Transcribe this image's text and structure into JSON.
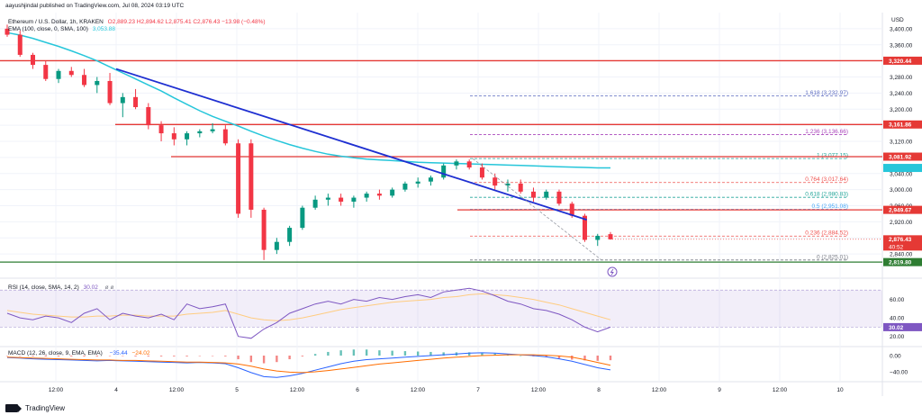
{
  "header": {
    "published_line": "aayushjindal published on TradingView.com, Jul 08, 2024 03:19 UTC"
  },
  "legend": {
    "symbol": "Ethereum / U.S. Dollar, 1h, KRAKEN",
    "ohlc": "O2,889.23 H2,894.62 L2,875.41 C2,876.43 −13.98 (−0.48%)",
    "ema_label": "EMA (100, close, 0, SMA, 100)",
    "ema_value": "3,053.88",
    "rsi_label": "RSI (14, close, SMA, 14, 2)",
    "rsi_value": "30.02",
    "rsi_extra": "",
    "macd_label": "MACD (12, 26, close, 9, EMA, EMA)",
    "macd_values": "",
    "macd_v2": "−35.44",
    "macd_v3": "−24.02"
  },
  "footer": {
    "brand": "TradingView"
  },
  "colors": {
    "up": "#089981",
    "down": "#f23645",
    "ema": "#26c6da",
    "trend": "#1e2fd1",
    "rsi": "#7e57c2",
    "macd": "#2962ff",
    "signal": "#ff6d00",
    "red_line": "#e53935",
    "green_line": "#2e7d32"
  },
  "chart_data": [
    {
      "type": "candlestick",
      "title": "Ethereum / U.S. Dollar, 1h, KRAKEN",
      "currency_label": "USD",
      "ylim": [
        2800,
        3440
      ],
      "y_ticks": [
        3400,
        3360,
        3320,
        3280,
        3240,
        3200,
        3160,
        3120,
        3080,
        3040,
        3000,
        2960,
        2920,
        2880,
        2840
      ],
      "y_tick_labels": [
        "3,400.00",
        "3,360.00",
        "3,320.00",
        "3,280.00",
        "3,240.00",
        "3,200.00",
        "3,160.00",
        "3,120.00",
        "3,080.00",
        "3,040.00",
        "3,000.00",
        "2,960.00",
        "2,920.00",
        "2,880.00",
        "2,840.00"
      ],
      "x_ticks": [
        {
          "label": "12:00",
          "pos": 0.5
        },
        {
          "label": "4",
          "pos": 1
        },
        {
          "label": "12:00",
          "pos": 1.5
        },
        {
          "label": "5",
          "pos": 2
        },
        {
          "label": "12:00",
          "pos": 2.5
        },
        {
          "label": "6",
          "pos": 3
        },
        {
          "label": "12:00",
          "pos": 3.5
        },
        {
          "label": "7",
          "pos": 4
        },
        {
          "label": "12:00",
          "pos": 4.5
        },
        {
          "label": "8",
          "pos": 5
        },
        {
          "label": "12:00",
          "pos": 5.5
        },
        {
          "label": "9",
          "pos": 6
        },
        {
          "label": "12:00",
          "pos": 6.5
        },
        {
          "label": "10",
          "pos": 7
        }
      ],
      "x_unit": "days from Jul 4 start",
      "candles": [
        [
          3400,
          3410,
          3380,
          3385
        ],
        [
          3385,
          3395,
          3330,
          3335
        ],
        [
          3335,
          3340,
          3300,
          3310
        ],
        [
          3310,
          3320,
          3270,
          3275
        ],
        [
          3275,
          3300,
          3265,
          3295
        ],
        [
          3295,
          3305,
          3280,
          3285
        ],
        [
          3285,
          3300,
          3255,
          3260
        ],
        [
          3260,
          3280,
          3240,
          3270
        ],
        [
          3270,
          3290,
          3210,
          3215
        ],
        [
          3215,
          3240,
          3180,
          3230
        ],
        [
          3230,
          3250,
          3200,
          3205
        ],
        [
          3205,
          3215,
          3150,
          3160
        ],
        [
          3160,
          3170,
          3120,
          3140
        ],
        [
          3140,
          3155,
          3110,
          3125
        ],
        [
          3125,
          3145,
          3110,
          3140
        ],
        [
          3140,
          3150,
          3130,
          3145
        ],
        [
          3145,
          3165,
          3140,
          3150
        ],
        [
          3150,
          3160,
          3110,
          3115
        ],
        [
          3115,
          3125,
          2930,
          2940
        ],
        [
          3115,
          3125,
          2930,
          2950
        ],
        [
          2950,
          2955,
          2825,
          2850
        ],
        [
          2850,
          2880,
          2840,
          2870
        ],
        [
          2870,
          2910,
          2860,
          2905
        ],
        [
          2905,
          2960,
          2900,
          2955
        ],
        [
          2955,
          2985,
          2950,
          2975
        ],
        [
          2975,
          2990,
          2960,
          2980
        ],
        [
          2980,
          2990,
          2960,
          2970
        ],
        [
          2970,
          2985,
          2955,
          2980
        ],
        [
          2980,
          2995,
          2970,
          2990
        ],
        [
          2990,
          3000,
          2975,
          2985
        ],
        [
          2985,
          3005,
          2980,
          3000
        ],
        [
          3000,
          3020,
          2995,
          3015
        ],
        [
          3015,
          3030,
          3005,
          3020
        ],
        [
          3020,
          3035,
          3010,
          3030
        ],
        [
          3030,
          3065,
          3025,
          3060
        ],
        [
          3060,
          3075,
          3050,
          3070
        ],
        [
          3070,
          3075,
          3050,
          3055
        ],
        [
          3055,
          3065,
          3025,
          3030
        ],
        [
          3030,
          3040,
          3000,
          3010
        ],
        [
          3010,
          3025,
          2995,
          3015
        ],
        [
          3015,
          3025,
          2990,
          2995
        ],
        [
          2995,
          3005,
          2970,
          2980
        ],
        [
          2980,
          3000,
          2975,
          2995
        ],
        [
          2995,
          3000,
          2960,
          2965
        ],
        [
          2965,
          2970,
          2930,
          2935
        ],
        [
          2935,
          2940,
          2870,
          2875
        ],
        [
          2875,
          2890,
          2860,
          2885
        ],
        [
          2889.23,
          2894.62,
          2875.41,
          2876.43
        ]
      ],
      "ema_100": [
        3390,
        3384,
        3376,
        3366,
        3356,
        3345,
        3333,
        3320,
        3305,
        3290,
        3275,
        3260,
        3245,
        3228,
        3212,
        3196,
        3182,
        3170,
        3158,
        3145,
        3133,
        3122,
        3112,
        3103,
        3095,
        3088,
        3083,
        3079,
        3076,
        3074,
        3072,
        3070,
        3068,
        3067,
        3066,
        3065,
        3064,
        3063,
        3062,
        3061,
        3060,
        3059,
        3058,
        3057,
        3056,
        3055,
        3054,
        3053.88
      ],
      "horizontal_lines": [
        {
          "price": 3320.44,
          "label": "3,320.44",
          "color": "#e53935"
        },
        {
          "price": 3161.86,
          "label": "3,161.86",
          "color": "#e53935"
        },
        {
          "price": 3081.92,
          "label": "3,081.92",
          "color": "#e53935"
        },
        {
          "price": 2949.67,
          "label": "2,949.67",
          "color": "#e53935"
        },
        {
          "price": 2819.8,
          "label": "2,819.80",
          "color": "#2e7d32"
        }
      ],
      "trendline": {
        "from": [
          1.0,
          3300
        ],
        "to": [
          4.9,
          2925
        ]
      },
      "fib_levels": [
        {
          "ratio": "1.618",
          "price": 3232.97,
          "label": "3,232.97",
          "color": "#5c6bc0"
        },
        {
          "ratio": "1.236",
          "price": 3136.66,
          "label": "3,136.66",
          "color": "#ab47bc"
        },
        {
          "ratio": "1",
          "price": 3077.15,
          "label": "3,077.15",
          "color": "#26a69a"
        },
        {
          "ratio": "0.764",
          "price": 3017.64,
          "label": "3,017.64",
          "color": "#ef5350"
        },
        {
          "ratio": "0.618",
          "price": 2980.83,
          "label": "2,980.83",
          "color": "#26a69a"
        },
        {
          "ratio": "0.5",
          "price": 2951.08,
          "label": "2,951.08",
          "color": "#42a5f5"
        },
        {
          "ratio": "0.236",
          "price": 2884.52,
          "label": "2,884.52",
          "color": "#ef5350"
        },
        {
          "ratio": "0",
          "price": 2825.01,
          "label": "2,825.01",
          "color": "#787b86"
        }
      ],
      "last_price": {
        "price": 2876.43,
        "label": "2,876.43",
        "countdown": "40:52"
      },
      "ema_marker": {
        "price": 3053.88,
        "label": ""
      }
    },
    {
      "type": "line",
      "title": "RSI (14, close, SMA, 14, 2)",
      "ylim": [
        10,
        80
      ],
      "y_ticks": [
        60,
        40,
        20
      ],
      "y_tick_labels": [
        "60.00",
        "40.00",
        "20.00"
      ],
      "upper_band": 70,
      "lower_band": 30,
      "rsi": [
        45,
        40,
        38,
        42,
        40,
        35,
        45,
        50,
        38,
        45,
        42,
        40,
        44,
        38,
        55,
        50,
        52,
        55,
        20,
        18,
        28,
        35,
        45,
        50,
        55,
        58,
        55,
        60,
        58,
        62,
        60,
        63,
        65,
        62,
        68,
        70,
        72,
        69,
        64,
        58,
        55,
        50,
        48,
        44,
        38,
        30,
        25,
        30.02
      ],
      "rsi_ma": [
        48,
        46,
        44,
        43,
        42,
        41,
        41,
        42,
        42,
        43,
        43,
        42,
        42,
        42,
        44,
        45,
        46,
        48,
        44,
        40,
        38,
        37,
        38,
        40,
        43,
        46,
        49,
        51,
        53,
        55,
        57,
        58,
        59,
        60,
        62,
        63,
        65,
        66,
        65,
        64,
        62,
        60,
        57,
        54,
        50,
        46,
        42,
        38
      ],
      "last_value_label": "30.02"
    },
    {
      "type": "line",
      "title": "MACD (12, 26, close, 9, EMA, EMA)",
      "ylim": [
        -60,
        20
      ],
      "y_ticks": [
        0,
        -40
      ],
      "y_tick_labels": [
        "0.00",
        "−40.00"
      ],
      "macd": [
        -5,
        -6,
        -8,
        -9,
        -10,
        -11,
        -12,
        -13,
        -12,
        -13,
        -14,
        -15,
        -16,
        -17,
        -18,
        -17,
        -18,
        -20,
        -30,
        -42,
        -52,
        -54,
        -50,
        -44,
        -36,
        -28,
        -20,
        -14,
        -10,
        -8,
        -6,
        -4,
        -2,
        0,
        2,
        4,
        6,
        7,
        6,
        4,
        2,
        0,
        -3,
        -8,
        -14,
        -22,
        -30,
        -35.44
      ],
      "signal": [
        -4,
        -5,
        -6,
        -7,
        -8,
        -9,
        -10,
        -11,
        -11,
        -12,
        -12,
        -13,
        -14,
        -15,
        -16,
        -16,
        -17,
        -18,
        -21,
        -26,
        -33,
        -38,
        -41,
        -42,
        -40,
        -37,
        -33,
        -29,
        -25,
        -21,
        -18,
        -15,
        -12,
        -9,
        -6,
        -4,
        -2,
        0,
        1,
        2,
        2,
        2,
        1,
        -1,
        -4,
        -10,
        -17,
        -24.02
      ],
      "labels": [
        "−35.44",
        "−24.02"
      ]
    }
  ]
}
